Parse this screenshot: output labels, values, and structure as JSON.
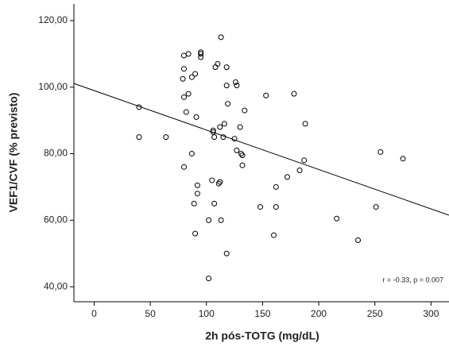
{
  "chart_data": {
    "type": "scatter",
    "x_label": "2h pós-TOTG (mg/dL)",
    "y_label": "VEF1/CVF (% previsto)",
    "annotation": "r = -0.33, p = 0.007",
    "xlim": [
      -18,
      316
    ],
    "ylim": [
      35.5,
      125
    ],
    "xticks": [
      0,
      50,
      100,
      150,
      200,
      250,
      300
    ],
    "yticks": [
      {
        "value": 40,
        "label": "40,00"
      },
      {
        "value": 60,
        "label": "60,00"
      },
      {
        "value": 80,
        "label": "80,00"
      },
      {
        "value": 100,
        "label": "100,00"
      },
      {
        "value": 120,
        "label": "120,00"
      }
    ],
    "color": "#000000",
    "fit_line": {
      "x": [
        -18,
        316
      ],
      "y": [
        101.1,
        61.5
      ],
      "color": "#000000"
    },
    "x": [
      40,
      40,
      64,
      79,
      80,
      80,
      84,
      80,
      82,
      84,
      87,
      90,
      80,
      87,
      89,
      90,
      91,
      92,
      92,
      95,
      95,
      95,
      102,
      102,
      105,
      107,
      106,
      106,
      107,
      108,
      110,
      111,
      112,
      112,
      113,
      113,
      115,
      116,
      118,
      118,
      118,
      119,
      125,
      126,
      127,
      127,
      130,
      131,
      132,
      132,
      134,
      148,
      153,
      160,
      162,
      162,
      172,
      178,
      183,
      187,
      188,
      216,
      235,
      251,
      255,
      275
    ],
    "values": [
      94,
      85,
      85,
      102.5,
      105.5,
      109.5,
      110,
      97,
      92.5,
      98,
      103,
      104,
      76,
      80,
      65,
      56,
      91,
      70.5,
      68,
      110.5,
      110,
      109,
      42.5,
      60,
      72,
      85,
      86.5,
      87,
      65,
      106,
      107,
      71,
      71.5,
      88,
      115,
      60,
      85,
      89,
      100.5,
      50,
      106,
      95,
      84.5,
      101.5,
      81,
      100.5,
      88,
      80,
      79.5,
      76.5,
      93,
      64,
      97.5,
      55.5,
      70,
      64,
      73,
      98,
      75,
      78,
      89,
      60.5,
      54,
      64,
      80.5,
      78.5
    ]
  }
}
